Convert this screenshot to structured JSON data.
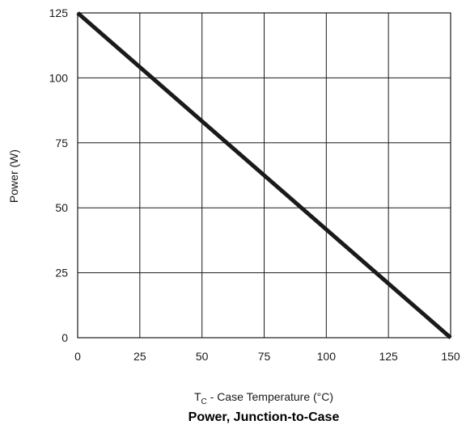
{
  "chart_data": {
    "type": "line",
    "title": "Power, Junction-to-Case",
    "xlabel": {
      "main": "T",
      "subscript": "C",
      "rest": " - Case Temperature (°C)"
    },
    "ylabel": "Power (W)",
    "xlim": [
      0,
      150
    ],
    "ylim": [
      0,
      125
    ],
    "x_ticks": [
      0,
      25,
      50,
      75,
      100,
      125,
      150
    ],
    "y_ticks": [
      0,
      25,
      50,
      75,
      100,
      125
    ],
    "grid": true,
    "series": [
      {
        "x": [
          0,
          150
        ],
        "y": [
          125,
          0
        ],
        "color": "#1a1a1a"
      }
    ]
  }
}
